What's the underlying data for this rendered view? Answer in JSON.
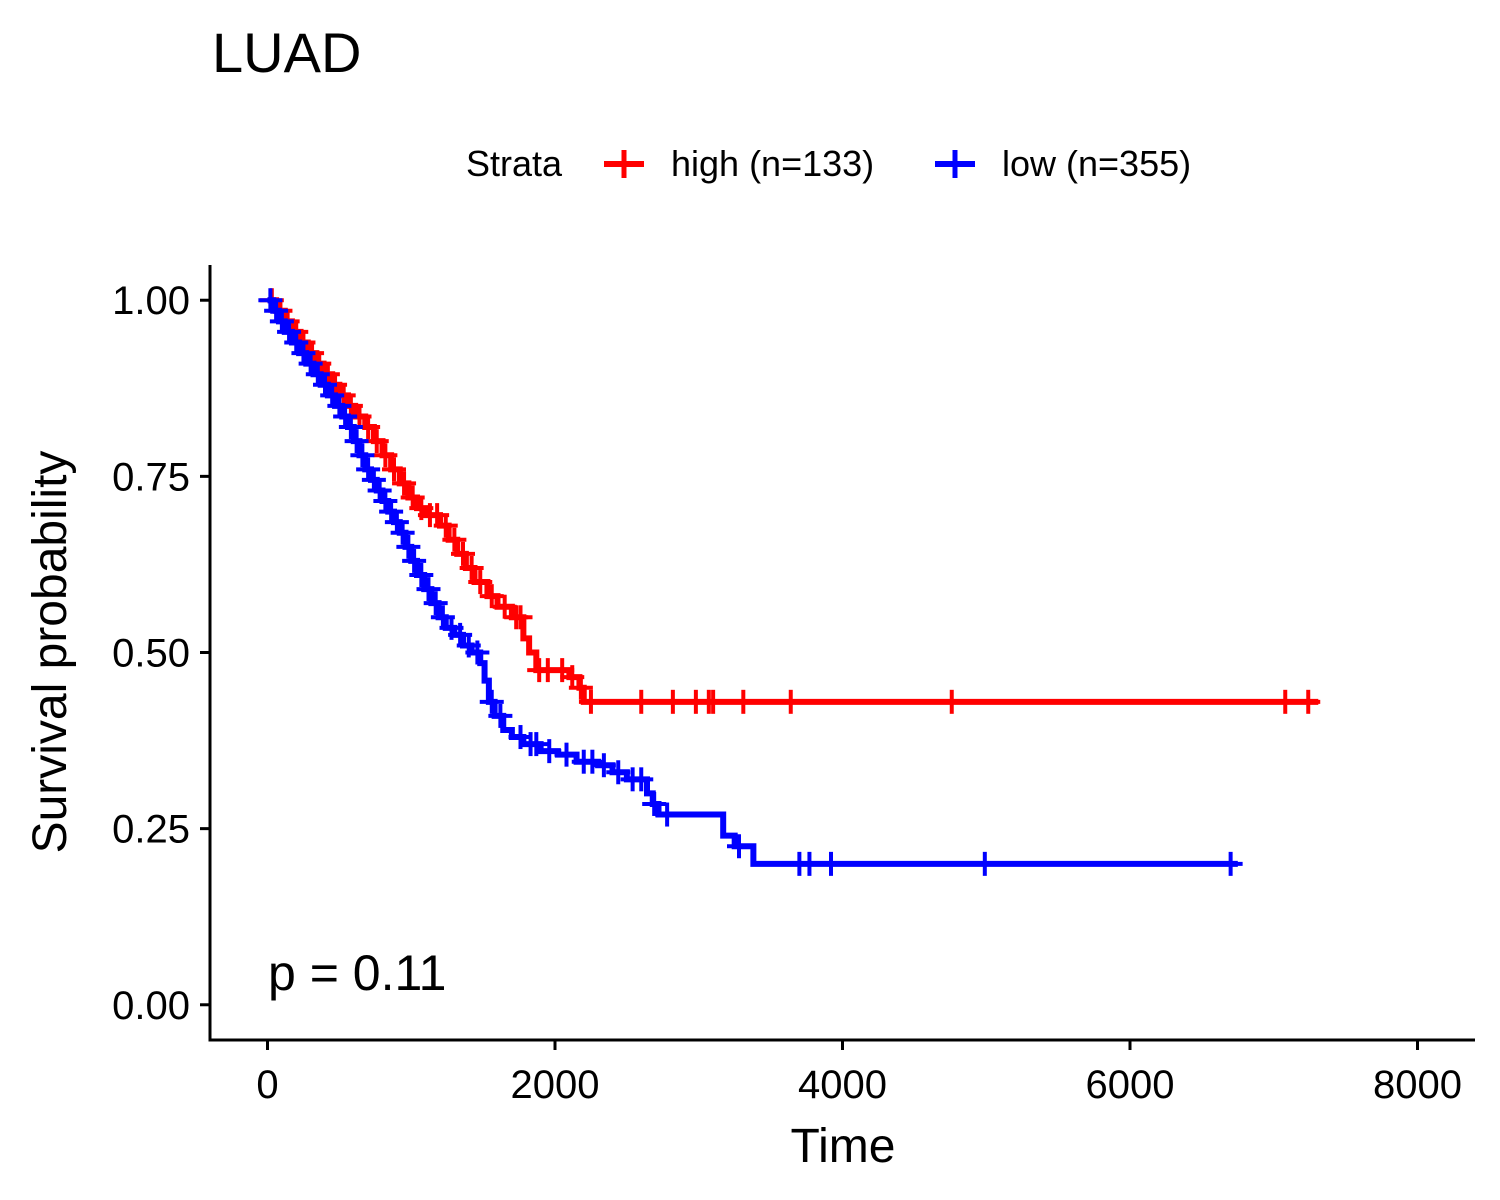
{
  "chart_data": {
    "type": "line",
    "title": "LUAD",
    "xlabel": "Time",
    "ylabel": "Survival probability",
    "xlim": [
      -400,
      8400
    ],
    "ylim": [
      -0.05,
      1.05
    ],
    "x_ticks": [
      0,
      2000,
      4000,
      6000,
      8000
    ],
    "x_tick_labels": [
      "0",
      "2000",
      "4000",
      "6000",
      "8000"
    ],
    "y_ticks": [
      0,
      0.25,
      0.5,
      0.75,
      1.0
    ],
    "y_tick_labels": [
      "0.00",
      "0.25",
      "0.50",
      "0.75",
      "1.00"
    ],
    "grid": false,
    "legend_title": "Strata",
    "legend_position": "top",
    "annotation": "p = 0.11",
    "series": [
      {
        "name": "high (n=133)",
        "color": "#ff0000",
        "steps": [
          [
            0,
            1.0
          ],
          [
            60,
            0.985
          ],
          [
            120,
            0.97
          ],
          [
            170,
            0.955
          ],
          [
            230,
            0.94
          ],
          [
            280,
            0.925
          ],
          [
            340,
            0.91
          ],
          [
            390,
            0.895
          ],
          [
            450,
            0.88
          ],
          [
            500,
            0.865
          ],
          [
            560,
            0.85
          ],
          [
            610,
            0.835
          ],
          [
            680,
            0.82
          ],
          [
            740,
            0.8
          ],
          [
            800,
            0.78
          ],
          [
            860,
            0.76
          ],
          [
            920,
            0.74
          ],
          [
            980,
            0.72
          ],
          [
            1040,
            0.705
          ],
          [
            1100,
            0.695
          ],
          [
            1200,
            0.68
          ],
          [
            1260,
            0.66
          ],
          [
            1320,
            0.64
          ],
          [
            1380,
            0.62
          ],
          [
            1440,
            0.6
          ],
          [
            1530,
            0.58
          ],
          [
            1600,
            0.565
          ],
          [
            1700,
            0.55
          ],
          [
            1780,
            0.52
          ],
          [
            1820,
            0.5
          ],
          [
            1870,
            0.475
          ],
          [
            2100,
            0.465
          ],
          [
            2170,
            0.45
          ],
          [
            2200,
            0.43
          ],
          [
            7310,
            0.43
          ]
        ],
        "censors": [
          [
            30,
            0.995
          ],
          [
            90,
            0.98
          ],
          [
            140,
            0.965
          ],
          [
            200,
            0.95
          ],
          [
            250,
            0.93
          ],
          [
            310,
            0.915
          ],
          [
            360,
            0.9
          ],
          [
            420,
            0.885
          ],
          [
            470,
            0.87
          ],
          [
            530,
            0.855
          ],
          [
            580,
            0.84
          ],
          [
            640,
            0.83
          ],
          [
            700,
            0.81
          ],
          [
            760,
            0.79
          ],
          [
            820,
            0.77
          ],
          [
            880,
            0.75
          ],
          [
            950,
            0.73
          ],
          [
            1010,
            0.715
          ],
          [
            1070,
            0.7
          ],
          [
            1130,
            0.69
          ],
          [
            1180,
            0.685
          ],
          [
            1240,
            0.67
          ],
          [
            1300,
            0.65
          ],
          [
            1360,
            0.63
          ],
          [
            1420,
            0.61
          ],
          [
            1480,
            0.59
          ],
          [
            1560,
            0.575
          ],
          [
            1650,
            0.56
          ],
          [
            1730,
            0.55
          ],
          [
            1760,
            0.53
          ],
          [
            1890,
            0.475
          ],
          [
            1950,
            0.475
          ],
          [
            2050,
            0.475
          ],
          [
            2120,
            0.465
          ],
          [
            2180,
            0.45
          ],
          [
            2250,
            0.43
          ],
          [
            2600,
            0.43
          ],
          [
            2820,
            0.43
          ],
          [
            2980,
            0.43
          ],
          [
            3070,
            0.43
          ],
          [
            3100,
            0.43
          ],
          [
            3310,
            0.43
          ],
          [
            3640,
            0.43
          ],
          [
            4760,
            0.43
          ],
          [
            7080,
            0.43
          ],
          [
            7240,
            0.43
          ]
        ]
      },
      {
        "name": "low (n=355)",
        "color": "#0000ff",
        "steps": [
          [
            0,
            1.0
          ],
          [
            40,
            0.985
          ],
          [
            80,
            0.97
          ],
          [
            120,
            0.955
          ],
          [
            170,
            0.94
          ],
          [
            220,
            0.925
          ],
          [
            270,
            0.91
          ],
          [
            320,
            0.895
          ],
          [
            370,
            0.88
          ],
          [
            420,
            0.865
          ],
          [
            470,
            0.85
          ],
          [
            520,
            0.835
          ],
          [
            560,
            0.82
          ],
          [
            600,
            0.8
          ],
          [
            640,
            0.78
          ],
          [
            680,
            0.76
          ],
          [
            720,
            0.745
          ],
          [
            760,
            0.73
          ],
          [
            800,
            0.715
          ],
          [
            840,
            0.7
          ],
          [
            880,
            0.685
          ],
          [
            920,
            0.67
          ],
          [
            960,
            0.65
          ],
          [
            1000,
            0.63
          ],
          [
            1040,
            0.61
          ],
          [
            1090,
            0.59
          ],
          [
            1140,
            0.57
          ],
          [
            1190,
            0.55
          ],
          [
            1240,
            0.535
          ],
          [
            1300,
            0.525
          ],
          [
            1360,
            0.51
          ],
          [
            1420,
            0.5
          ],
          [
            1480,
            0.485
          ],
          [
            1510,
            0.46
          ],
          [
            1540,
            0.43
          ],
          [
            1580,
            0.41
          ],
          [
            1640,
            0.39
          ],
          [
            1700,
            0.38
          ],
          [
            1780,
            0.37
          ],
          [
            1900,
            0.36
          ],
          [
            2020,
            0.355
          ],
          [
            2150,
            0.345
          ],
          [
            2300,
            0.34
          ],
          [
            2400,
            0.33
          ],
          [
            2500,
            0.32
          ],
          [
            2640,
            0.3
          ],
          [
            2680,
            0.285
          ],
          [
            2720,
            0.27
          ],
          [
            3170,
            0.24
          ],
          [
            3250,
            0.225
          ],
          [
            3380,
            0.2
          ],
          [
            6750,
            0.2
          ]
        ],
        "censors": [
          [
            20,
            0.995
          ],
          [
            60,
            0.98
          ],
          [
            100,
            0.965
          ],
          [
            150,
            0.95
          ],
          [
            200,
            0.935
          ],
          [
            250,
            0.92
          ],
          [
            300,
            0.905
          ],
          [
            350,
            0.89
          ],
          [
            400,
            0.875
          ],
          [
            450,
            0.86
          ],
          [
            500,
            0.845
          ],
          [
            540,
            0.83
          ],
          [
            580,
            0.81
          ],
          [
            620,
            0.79
          ],
          [
            660,
            0.77
          ],
          [
            700,
            0.755
          ],
          [
            740,
            0.74
          ],
          [
            780,
            0.725
          ],
          [
            820,
            0.71
          ],
          [
            860,
            0.695
          ],
          [
            900,
            0.68
          ],
          [
            940,
            0.66
          ],
          [
            980,
            0.64
          ],
          [
            1020,
            0.62
          ],
          [
            1070,
            0.6
          ],
          [
            1120,
            0.58
          ],
          [
            1170,
            0.56
          ],
          [
            1220,
            0.545
          ],
          [
            1280,
            0.53
          ],
          [
            1340,
            0.52
          ],
          [
            1400,
            0.505
          ],
          [
            1460,
            0.49
          ],
          [
            1560,
            0.44
          ],
          [
            1620,
            0.4
          ],
          [
            1760,
            0.375
          ],
          [
            1830,
            0.37
          ],
          [
            1870,
            0.37
          ],
          [
            1960,
            0.36
          ],
          [
            2080,
            0.355
          ],
          [
            2200,
            0.345
          ],
          [
            2260,
            0.345
          ],
          [
            2340,
            0.34
          ],
          [
            2440,
            0.33
          ],
          [
            2540,
            0.32
          ],
          [
            2600,
            0.32
          ],
          [
            2690,
            0.285
          ],
          [
            2780,
            0.27
          ],
          [
            3280,
            0.225
          ],
          [
            3700,
            0.2
          ],
          [
            3770,
            0.2
          ],
          [
            3920,
            0.2
          ],
          [
            4990,
            0.2
          ],
          [
            6700,
            0.2
          ]
        ]
      }
    ]
  }
}
